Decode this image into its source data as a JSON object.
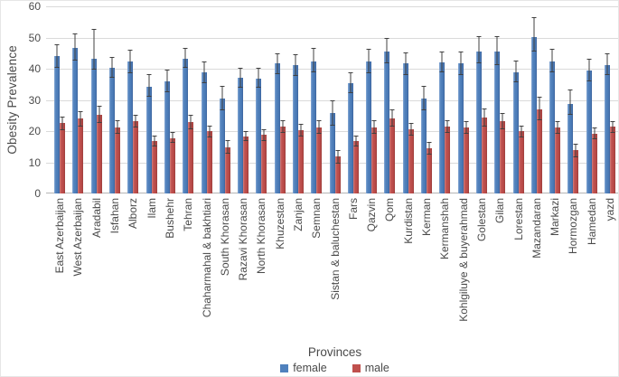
{
  "colors": {
    "female": "#4f81bd",
    "male": "#c0504d",
    "gridline": "#dadada",
    "axis_line": "#b5b5b5",
    "error_bar": "#404040",
    "text": "#4a4a4a"
  },
  "chart_data": {
    "type": "bar",
    "title": "",
    "xlabel": "Provinces",
    "ylabel": "Obesity Prevalence",
    "ylim": [
      0,
      60
    ],
    "yticks": [
      0,
      10,
      20,
      30,
      40,
      50,
      60
    ],
    "grid": true,
    "legend_position": "bottom",
    "error_bars": true,
    "series_meta": [
      {
        "name": "female",
        "color": "#4f81bd"
      },
      {
        "name": "male",
        "color": "#c0504d"
      }
    ],
    "categories": [
      "East Azerbaijan",
      "West Azerbaijan",
      "Aradabil",
      "Isfahan",
      "Alborz",
      "Ilam",
      "Bushehr",
      "Tehran",
      "Chaharmahal & bakhtiari",
      "South Khorasan",
      "Razavi Khorasan",
      "North Khorasan",
      "Khuzestan",
      "Zanjan",
      "Semnan",
      "Sistan & baluchestan",
      "Fars",
      "Qazvin",
      "Qom",
      "Kurdistan",
      "Kerman",
      "Kermanshah",
      "Kohlgiluye & buyerahmad",
      "Golestan",
      "Gilan",
      "Lorestan",
      "Mazandaran",
      "Markazi",
      "Hormozgan",
      "Hamedan",
      "yazd"
    ],
    "series": [
      {
        "name": "female",
        "values": [
          44.0,
          46.8,
          43.2,
          40.4,
          42.3,
          34.2,
          35.9,
          43.3,
          38.8,
          30.4,
          37.0,
          36.9,
          41.6,
          41.1,
          42.4,
          25.8,
          35.4,
          42.3,
          45.6,
          41.6,
          30.5,
          42.1,
          41.6,
          45.6,
          45.4,
          38.9,
          50.1,
          42.3,
          28.6,
          39.3,
          41.3
        ],
        "errors_up": [
          3.7,
          4.6,
          9.5,
          3.4,
          3.8,
          4.1,
          3.9,
          3.3,
          3.5,
          4.0,
          3.2,
          3.3,
          3.3,
          3.5,
          4.2,
          4.2,
          3.4,
          4.1,
          4.2,
          3.7,
          3.9,
          3.4,
          3.8,
          4.7,
          4.9,
          3.6,
          6.5,
          4.1,
          4.8,
          3.9,
          3.6
        ],
        "errors_down": [
          3.7,
          4.3,
          3.4,
          3.4,
          3.8,
          3.3,
          3.4,
          3.0,
          3.3,
          3.8,
          3.0,
          3.1,
          3.2,
          3.3,
          3.6,
          4.0,
          3.2,
          3.6,
          4.0,
          3.5,
          3.7,
          3.3,
          3.6,
          4.0,
          4.2,
          3.3,
          4.7,
          3.5,
          3.4,
          3.3,
          3.3
        ]
      },
      {
        "name": "male",
        "values": [
          22.5,
          24.1,
          25.3,
          21.3,
          23.2,
          16.8,
          17.8,
          22.9,
          19.9,
          14.8,
          18.4,
          18.8,
          21.5,
          20.3,
          21.2,
          11.8,
          16.7,
          21.2,
          24.2,
          20.5,
          14.4,
          21.4,
          21.2,
          24.3,
          23.2,
          19.9,
          27.0,
          21.2,
          13.8,
          19.2,
          21.4
        ],
        "errors_up": [
          2.2,
          2.4,
          2.8,
          2.2,
          2.1,
          1.8,
          1.8,
          2.2,
          1.8,
          2.2,
          1.6,
          1.9,
          2.1,
          2.1,
          2.2,
          2.2,
          1.8,
          2.2,
          2.9,
          2.0,
          2.1,
          2.1,
          2.1,
          2.9,
          2.6,
          1.9,
          3.9,
          2.1,
          2.2,
          1.9,
          1.9
        ],
        "errors_down": [
          2.1,
          2.6,
          2.6,
          2.2,
          2.1,
          1.6,
          1.7,
          2.2,
          1.8,
          2.1,
          1.6,
          1.9,
          2.1,
          2.1,
          2.2,
          2.2,
          1.7,
          2.2,
          2.8,
          2.0,
          2.0,
          2.1,
          2.1,
          2.8,
          2.5,
          1.8,
          3.6,
          2.1,
          2.1,
          1.9,
          1.9
        ]
      }
    ]
  }
}
